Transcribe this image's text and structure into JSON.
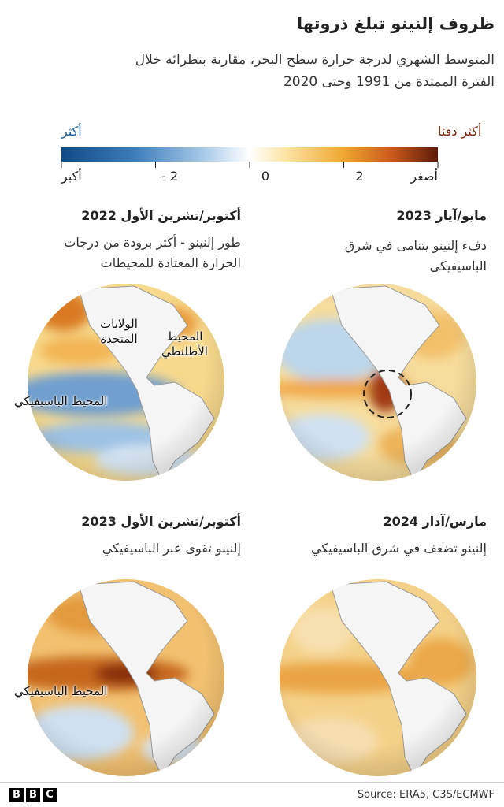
{
  "header": {
    "title": "ظروف إلنينو تبلغ ذروتها",
    "subtitle": [
      "المتوسط الشهري لدرجة حرارة سطح البحر، مقارنة بنظرائه خلال",
      "الفترة الممتدة من 1991 وحتى 2020"
    ]
  },
  "legend": {
    "cold_label": "أكثر",
    "warm_label": "أكثر دفئا",
    "left_end": "أكبر",
    "right_end": "أصغر",
    "lim": [
      -4,
      4
    ],
    "ticks": [
      {
        "value": -2,
        "label": "- 2"
      },
      0,
      2
    ]
  },
  "panels": [
    {
      "heading": "مايو/آيار 2023",
      "text": [
        "دفء إلنينو يتنامى في شرق",
        "الباسيفيكي"
      ],
      "labels": []
    },
    {
      "heading": "أكتوبر/تشرين الأول 2022",
      "text": [
        "طور إلنينو - أكثر برودة من درجات",
        "الحرارة المعتادة للمحيطات"
      ],
      "labels": [
        [
          "الولايات",
          "المتحدة"
        ],
        [
          "المحيط",
          "الأطلنطي"
        ],
        [
          "المحيط الباسيفيكي"
        ]
      ]
    },
    {
      "heading": "مارس/آذار 2024",
      "text": [
        "إلنينو تضعف في شرق الباسيفيكي"
      ],
      "labels": []
    },
    {
      "heading": "أكتوبر/تشرين الأول 2023",
      "text": [
        "إلنينو تقوى عبر الباسيفيكي"
      ],
      "labels": [
        [
          "المحيط الباسيفيكي"
        ]
      ]
    }
  ],
  "footer": {
    "logo": [
      "B",
      "B",
      "C"
    ],
    "source": "Source: ERA5, C3S/ECMWF"
  }
}
